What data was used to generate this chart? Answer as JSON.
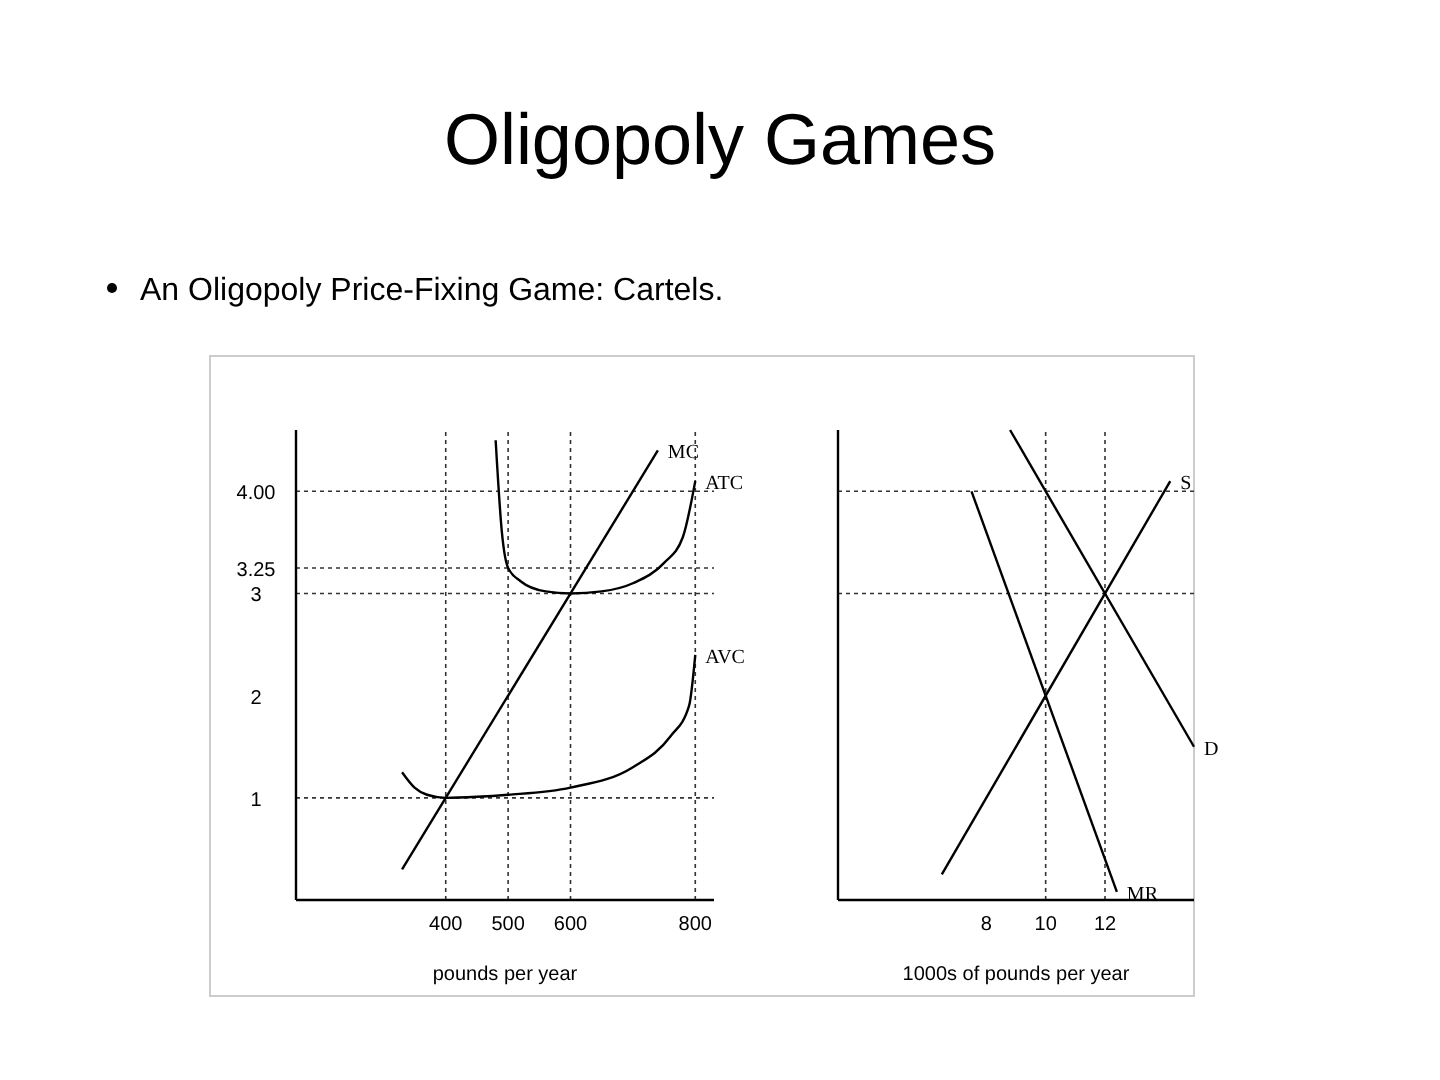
{
  "chart_data": [
    {
      "type": "line",
      "title": "Oligopoly Games",
      "subtitle": "An Oligopoly Price-Fixing Game: Cartels.",
      "xlabel": "pounds per year",
      "xlim": [
        160,
        830
      ],
      "ylim": [
        0,
        4.6
      ],
      "xticks": [
        400,
        500,
        600,
        800
      ],
      "yticks": [
        1,
        2,
        3,
        3.25,
        {
          "value": 4,
          "label": "4.00"
        }
      ],
      "grid": false,
      "series": [
        {
          "name": "MC",
          "color": "#000000",
          "x": [
            330,
            740
          ],
          "values": [
            0.3,
            4.4
          ]
        },
        {
          "name": "ATC",
          "color": "#000000",
          "x": [
            480,
            490,
            500,
            520,
            560,
            600,
            650,
            700,
            750,
            780,
            800
          ],
          "values": [
            4.5,
            3.6,
            3.25,
            3.12,
            3.02,
            3,
            3.02,
            3.1,
            3.3,
            3.55,
            4.1
          ]
        },
        {
          "name": "AVC",
          "color": "#000000",
          "x": [
            330,
            350,
            370,
            400,
            450,
            500,
            600,
            700,
            760,
            790,
            800
          ],
          "values": [
            1.25,
            1.1,
            1.03,
            1,
            1.01,
            1.03,
            1.1,
            1.3,
            1.6,
            1.9,
            2.4
          ]
        }
      ],
      "ref_lines": [
        {
          "axis": "y",
          "value": 4,
          "line_style": "dotted"
        },
        {
          "axis": "y",
          "value": 3.25,
          "line_style": "dotted"
        },
        {
          "axis": "y",
          "value": 3,
          "line_style": "dotted"
        },
        {
          "axis": "y",
          "value": 1,
          "line_style": "dotted"
        },
        {
          "axis": "x",
          "value": 400,
          "line_style": "dotted"
        },
        {
          "axis": "x",
          "value": 500,
          "line_style": "dotted"
        },
        {
          "axis": "x",
          "value": 600,
          "line_style": "dotted"
        },
        {
          "axis": "x",
          "value": 800,
          "line_style": "dotted"
        }
      ]
    },
    {
      "type": "line",
      "xlabel": "1000s of pounds per year",
      "xlim": [
        3,
        15
      ],
      "ylim": [
        0,
        4.6
      ],
      "xticks": [
        8,
        10,
        12
      ],
      "tick_labels": "x",
      "grid": false,
      "series": [
        {
          "name": "S",
          "color": "#000000",
          "x": [
            6.5,
            14.2
          ],
          "values": [
            0.25,
            4.1
          ]
        },
        {
          "name": "D",
          "color": "#000000",
          "x": [
            8.8,
            15
          ],
          "values": [
            4.6,
            1.5
          ]
        },
        {
          "name": "MR",
          "color": "#000000",
          "x": [
            7.5,
            12.4
          ],
          "values": [
            4.0,
            0.08
          ]
        }
      ],
      "ref_lines": [
        {
          "axis": "y",
          "value": 4,
          "line_style": "dotted"
        },
        {
          "axis": "y",
          "value": 3,
          "line_style": "dotted"
        },
        {
          "axis": "x",
          "value": 10,
          "line_style": "dotted"
        },
        {
          "axis": "x",
          "value": 12,
          "line_style": "dotted"
        }
      ]
    }
  ]
}
